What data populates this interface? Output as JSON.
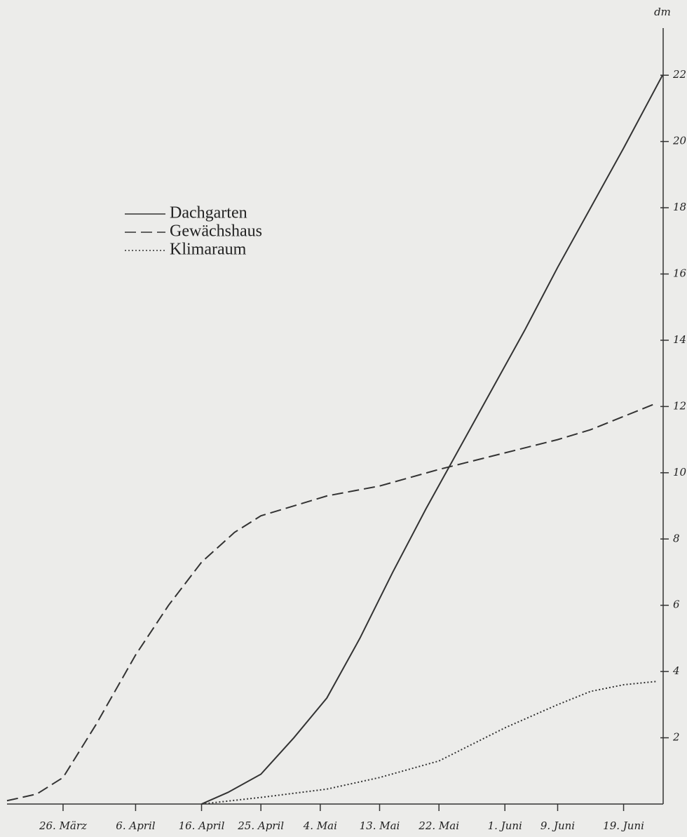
{
  "chart_data": {
    "type": "line",
    "y_unit": "dm",
    "xlim": [
      -8.5,
      91
    ],
    "ylim": [
      0,
      23
    ],
    "xticks": [
      {
        "value": 0,
        "label": "26. März"
      },
      {
        "value": 11,
        "label": "6. April"
      },
      {
        "value": 21,
        "label": "16. April"
      },
      {
        "value": 30,
        "label": "25. April"
      },
      {
        "value": 39,
        "label": "4. Mai"
      },
      {
        "value": 48,
        "label": "13. Mai"
      },
      {
        "value": 57,
        "label": "22. Mai"
      },
      {
        "value": 67,
        "label": "1. Juni"
      },
      {
        "value": 75,
        "label": "9. Juni"
      },
      {
        "value": 85,
        "label": "19. Juni"
      }
    ],
    "yticks": [
      2,
      4,
      6,
      8,
      10,
      12,
      14,
      16,
      18,
      20,
      22
    ],
    "legend": "upper-left",
    "series": [
      {
        "name": "Dachgarten",
        "color": "#333333",
        "style": "solid",
        "x": [
          21,
          25,
          30,
          35,
          40,
          45,
          50,
          55,
          60,
          65,
          70,
          75,
          80,
          85,
          90.9
        ],
        "values": [
          0,
          0.35,
          0.9,
          2.0,
          3.2,
          5.0,
          7.0,
          8.9,
          10.7,
          12.5,
          14.3,
          16.2,
          18.0,
          19.8,
          22
        ]
      },
      {
        "name": "Gewächshaus",
        "color": "#333333",
        "style": "dashed",
        "x": [
          -8.5,
          -4,
          0,
          5,
          11,
          16,
          21,
          26,
          30,
          40,
          48,
          57,
          67,
          75,
          80,
          85,
          90
        ],
        "values": [
          0.1,
          0.3,
          0.8,
          2.4,
          4.5,
          6.0,
          7.3,
          8.2,
          8.7,
          9.3,
          9.6,
          10.1,
          10.6,
          11.0,
          11.3,
          11.7,
          12.1
        ]
      },
      {
        "name": "Klimaraum",
        "color": "#333333",
        "style": "dotted",
        "x": [
          21,
          30,
          40,
          48,
          57,
          62,
          67,
          75,
          80,
          85,
          90
        ],
        "values": [
          0,
          0.2,
          0.45,
          0.8,
          1.3,
          1.8,
          2.3,
          3.0,
          3.4,
          3.6,
          3.7
        ]
      }
    ]
  }
}
